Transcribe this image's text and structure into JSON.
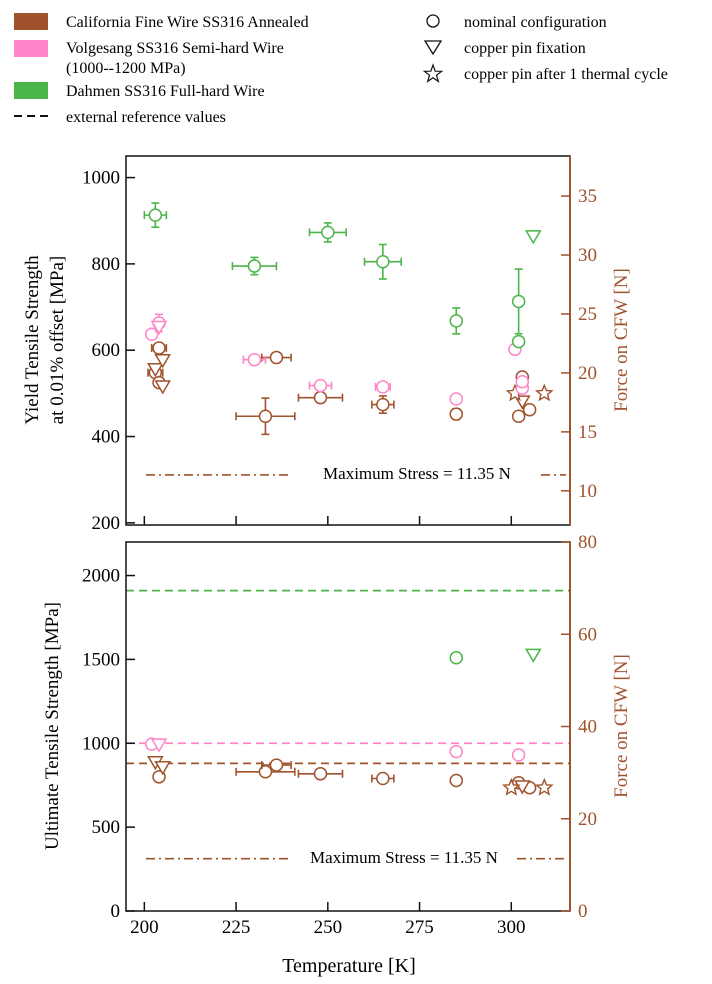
{
  "colors": {
    "cfw": "#a0522d",
    "volgesang": "#ff85c8",
    "dahmen": "#4cb54a",
    "text": "#111111",
    "axis_right": "#a0522d"
  },
  "legend": {
    "cfw": "California Fine Wire SS316 Annealed",
    "volgesang_1": "Volgesang SS316 Semi-hard Wire",
    "volgesang_2": "(1000--1200 MPa)",
    "dahmen": "Dahmen SS316 Full-hard Wire",
    "reference": "external reference values",
    "nominal": "nominal configuration",
    "pin": "copper pin fixation",
    "cycle": "copper pin after 1 thermal cycle"
  },
  "chart_data": [
    {
      "type": "scatter",
      "panel": "top",
      "ylabel_line1": "Yield Tensile Strength",
      "ylabel_line2": "at 0.01% offset [MPa]",
      "ylabel_right": "Force on CFW [N]",
      "xlim": [
        195,
        316
      ],
      "ylim": [
        195,
        1050
      ],
      "y_ticks": [
        200,
        400,
        600,
        800,
        1000
      ],
      "right_ylim": [
        7.1,
        38.4
      ],
      "right_ticks": [
        10,
        15,
        20,
        25,
        30,
        35
      ],
      "annotation": "Maximum Stress = 11.35 N",
      "max_stress_N": 11.35,
      "series": [
        {
          "name": "cfw",
          "points": [
            {
              "x": 204,
              "y": 605,
              "m": "circle",
              "xerr": 2,
              "yerr": 0
            },
            {
              "x": 203,
              "y": 548,
              "m": "circle",
              "xerr": 2,
              "yerr": 0
            },
            {
              "x": 204,
              "y": 525,
              "m": "circle",
              "xerr": 0,
              "yerr": 0
            },
            {
              "x": 233,
              "y": 447,
              "m": "circle",
              "xerr": 8,
              "yerr": 42
            },
            {
              "x": 236,
              "y": 583,
              "m": "circle",
              "xerr": 4,
              "yerr": 0
            },
            {
              "x": 248,
              "y": 490,
              "m": "circle",
              "xerr": 6,
              "yerr": 0
            },
            {
              "x": 265,
              "y": 474,
              "m": "circle",
              "xerr": 3,
              "yerr": 20
            },
            {
              "x": 285,
              "y": 452,
              "m": "circle",
              "xerr": 0,
              "yerr": 12
            },
            {
              "x": 302,
              "y": 447,
              "m": "circle",
              "xerr": 0,
              "yerr": 0
            },
            {
              "x": 303,
              "y": 538,
              "m": "circle",
              "xerr": 0,
              "yerr": 0
            },
            {
              "x": 305,
              "y": 462,
              "m": "circle",
              "xerr": 0,
              "yerr": 0
            },
            {
              "x": 203,
              "y": 557,
              "m": "triangle",
              "xerr": 0,
              "yerr": 0
            },
            {
              "x": 205,
              "y": 578,
              "m": "triangle",
              "xerr": 0,
              "yerr": 0
            },
            {
              "x": 205,
              "y": 517,
              "m": "triangle",
              "xerr": 0,
              "yerr": 0
            },
            {
              "x": 303,
              "y": 482,
              "m": "triangle",
              "xerr": 0,
              "yerr": 0
            },
            {
              "x": 301,
              "y": 500,
              "m": "star",
              "xerr": 0,
              "yerr": 0
            },
            {
              "x": 309,
              "y": 500,
              "m": "star",
              "xerr": 0,
              "yerr": 0
            }
          ]
        },
        {
          "name": "volgesang",
          "points": [
            {
              "x": 202,
              "y": 637,
              "m": "circle",
              "xerr": 0,
              "yerr": 0
            },
            {
              "x": 204,
              "y": 663,
              "m": "circle",
              "xerr": 0,
              "yerr": 20
            },
            {
              "x": 230,
              "y": 578,
              "m": "circle",
              "xerr": 3,
              "yerr": 0
            },
            {
              "x": 248,
              "y": 518,
              "m": "circle",
              "xerr": 3,
              "yerr": 0
            },
            {
              "x": 265,
              "y": 515,
              "m": "circle",
              "xerr": 2,
              "yerr": 0
            },
            {
              "x": 285,
              "y": 487,
              "m": "circle",
              "xerr": 0,
              "yerr": 0
            },
            {
              "x": 301,
              "y": 602,
              "m": "circle",
              "xerr": 0,
              "yerr": 0
            },
            {
              "x": 303,
              "y": 512,
              "m": "circle",
              "xerr": 0,
              "yerr": 0
            },
            {
              "x": 303,
              "y": 527,
              "m": "circle",
              "xerr": 0,
              "yerr": 0
            },
            {
              "x": 204,
              "y": 655,
              "m": "triangle",
              "xerr": 0,
              "yerr": 0
            }
          ]
        },
        {
          "name": "dahmen",
          "points": [
            {
              "x": 203,
              "y": 913,
              "m": "circle",
              "xerr": 3,
              "yerr": 28
            },
            {
              "x": 230,
              "y": 795,
              "m": "circle",
              "xerr": 6,
              "yerr": 20
            },
            {
              "x": 250,
              "y": 873,
              "m": "circle",
              "xerr": 5,
              "yerr": 22
            },
            {
              "x": 265,
              "y": 805,
              "m": "circle",
              "xerr": 5,
              "yerr": 40
            },
            {
              "x": 285,
              "y": 668,
              "m": "circle",
              "xerr": 0,
              "yerr": 30
            },
            {
              "x": 302,
              "y": 713,
              "m": "circle",
              "xerr": 0,
              "yerr": 75
            },
            {
              "x": 302,
              "y": 620,
              "m": "circle",
              "xerr": 0,
              "yerr": 0
            },
            {
              "x": 306,
              "y": 865,
              "m": "triangle",
              "xerr": 0,
              "yerr": 0
            }
          ]
        }
      ]
    },
    {
      "type": "scatter",
      "panel": "bottom",
      "ylabel": "Ultimate Tensile Strength [MPa]",
      "ylabel_right": "Force on CFW [N]",
      "xlabel": "Temperature [K]",
      "xlim": [
        195,
        316
      ],
      "ylim": [
        0,
        2200
      ],
      "y_ticks": [
        0,
        500,
        1000,
        1500,
        2000
      ],
      "x_ticks": [
        200,
        225,
        250,
        275,
        300
      ],
      "right_ylim": [
        0,
        80
      ],
      "right_ticks": [
        0,
        20,
        40,
        60,
        80
      ],
      "annotation": "Maximum Stress = 11.35 N",
      "max_stress_N": 11.35,
      "reference_lines": [
        {
          "series": "dahmen",
          "y": 1910
        },
        {
          "series": "volgesang",
          "y": 1000
        },
        {
          "series": "cfw",
          "y": 880
        }
      ],
      "series": [
        {
          "name": "cfw",
          "points": [
            {
              "x": 204,
              "y": 800,
              "m": "circle",
              "xerr": 0,
              "yerr": 0
            },
            {
              "x": 233,
              "y": 830,
              "m": "circle",
              "xerr": 8,
              "yerr": 0
            },
            {
              "x": 236,
              "y": 870,
              "m": "circle",
              "xerr": 4,
              "yerr": 0
            },
            {
              "x": 248,
              "y": 818,
              "m": "circle",
              "xerr": 6,
              "yerr": 0
            },
            {
              "x": 265,
              "y": 790,
              "m": "circle",
              "xerr": 3,
              "yerr": 0
            },
            {
              "x": 285,
              "y": 778,
              "m": "circle",
              "xerr": 0,
              "yerr": 0
            },
            {
              "x": 302,
              "y": 765,
              "m": "circle",
              "xerr": 0,
              "yerr": 0
            },
            {
              "x": 305,
              "y": 735,
              "m": "circle",
              "xerr": 0,
              "yerr": 0
            },
            {
              "x": 203,
              "y": 890,
              "m": "triangle",
              "xerr": 0,
              "yerr": 0
            },
            {
              "x": 205,
              "y": 860,
              "m": "triangle",
              "xerr": 0,
              "yerr": 0
            },
            {
              "x": 303,
              "y": 745,
              "m": "triangle",
              "xerr": 0,
              "yerr": 0
            },
            {
              "x": 300,
              "y": 735,
              "m": "star",
              "xerr": 0,
              "yerr": 0
            },
            {
              "x": 309,
              "y": 735,
              "m": "star",
              "xerr": 0,
              "yerr": 0
            }
          ]
        },
        {
          "name": "volgesang",
          "points": [
            {
              "x": 202,
              "y": 995,
              "m": "circle",
              "xerr": 0,
              "yerr": 0
            },
            {
              "x": 285,
              "y": 950,
              "m": "circle",
              "xerr": 0,
              "yerr": 0
            },
            {
              "x": 302,
              "y": 930,
              "m": "circle",
              "xerr": 0,
              "yerr": 0
            },
            {
              "x": 204,
              "y": 995,
              "m": "triangle",
              "xerr": 0,
              "yerr": 0
            }
          ]
        },
        {
          "name": "dahmen",
          "points": [
            {
              "x": 285,
              "y": 1510,
              "m": "circle",
              "xerr": 0,
              "yerr": 0
            },
            {
              "x": 306,
              "y": 1530,
              "m": "triangle",
              "xerr": 0,
              "yerr": 0
            }
          ]
        }
      ]
    }
  ]
}
